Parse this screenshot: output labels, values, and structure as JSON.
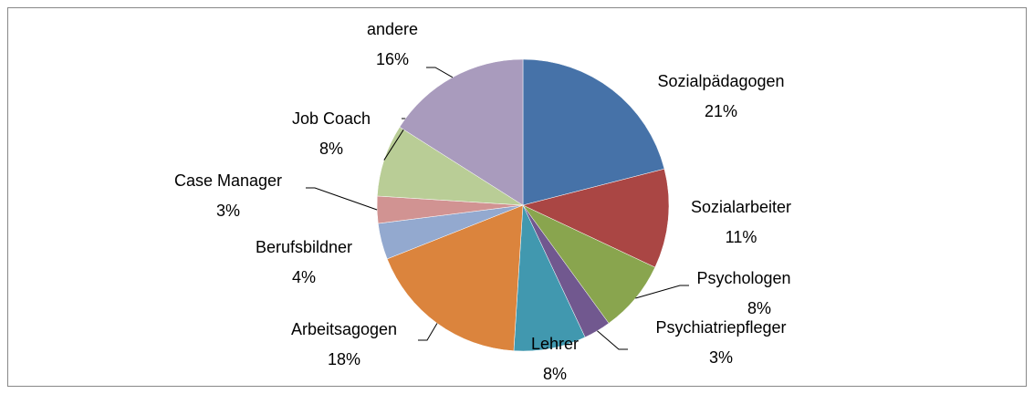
{
  "chart_data": {
    "type": "pie",
    "categories": [
      "Sozialpädagogen",
      "Sozialarbeiter",
      "Psychologen",
      "Psychiatriepfleger",
      "Lehrer",
      "Arbeitsagogen",
      "Berufsbildner",
      "Case Manager",
      "Job Coach",
      "andere"
    ],
    "values": [
      21,
      11,
      8,
      3,
      8,
      18,
      4,
      3,
      8,
      16
    ],
    "value_labels": [
      "21%",
      "11%",
      "8%",
      "3%",
      "8%",
      "18%",
      "4%",
      "3%",
      "8%",
      "16%"
    ],
    "colors": [
      "#4672a8",
      "#aa4644",
      "#89a54e",
      "#71588f",
      "#4198af",
      "#db843d",
      "#93a9cf",
      "#d19392",
      "#b9cd96",
      "#a99bbd"
    ]
  }
}
